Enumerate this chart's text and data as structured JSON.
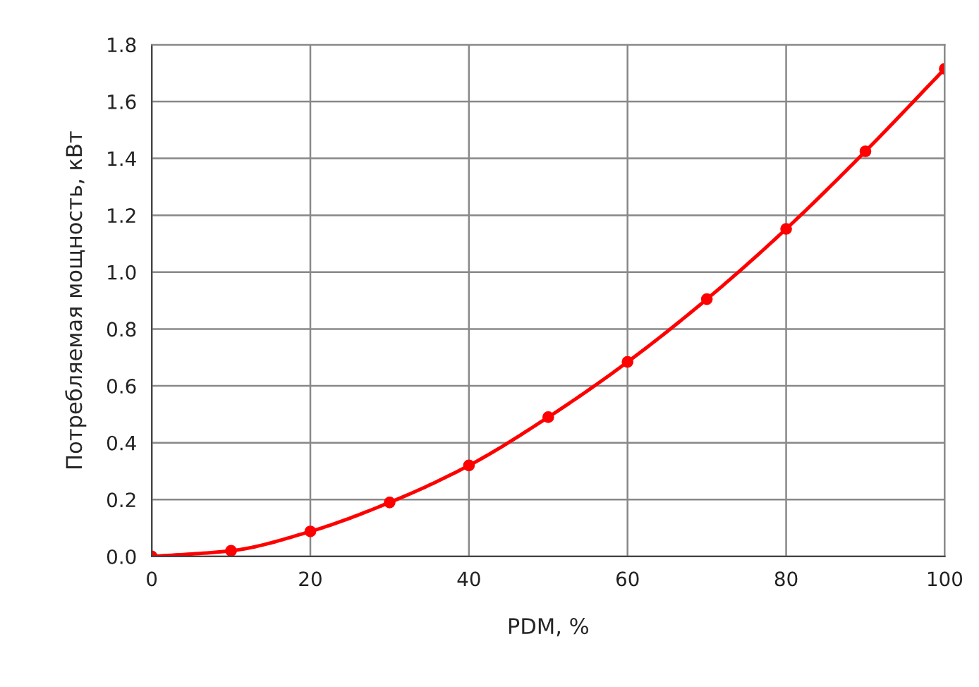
{
  "chart_data": {
    "type": "line",
    "xlabel": "PDM, %",
    "ylabel": "Потребляемая мощность, кВт",
    "x": [
      0,
      10,
      20,
      30,
      40,
      50,
      60,
      70,
      80,
      90,
      100
    ],
    "series": [
      {
        "color": "#ff0000",
        "values": [
          0,
          0.02,
          0.088,
          0.19,
          0.32,
          0.49,
          0.684,
          0.905,
          1.152,
          1.425,
          1.715
        ]
      }
    ],
    "xlim": [
      0,
      100
    ],
    "xticks": [
      0,
      20,
      40,
      60,
      80,
      100
    ],
    "ylim": [
      0,
      1.8
    ],
    "yticks": [
      {
        "value": 0,
        "label": "0.0"
      },
      {
        "value": 0.2,
        "label": "0.2"
      },
      {
        "value": 0.4,
        "label": "0.4"
      },
      {
        "value": 0.6,
        "label": "0.6"
      },
      {
        "value": 0.8,
        "label": "0.8"
      },
      {
        "value": 1.0,
        "label": "1.0"
      },
      {
        "value": 1.2,
        "label": "1.2"
      },
      {
        "value": 1.4,
        "label": "1.4"
      },
      {
        "value": 1.6,
        "label": "1.6"
      },
      {
        "value": 1.8,
        "label": "1.8"
      }
    ],
    "grid": true,
    "legend": false,
    "marker": "circle",
    "line_style": "solid"
  }
}
